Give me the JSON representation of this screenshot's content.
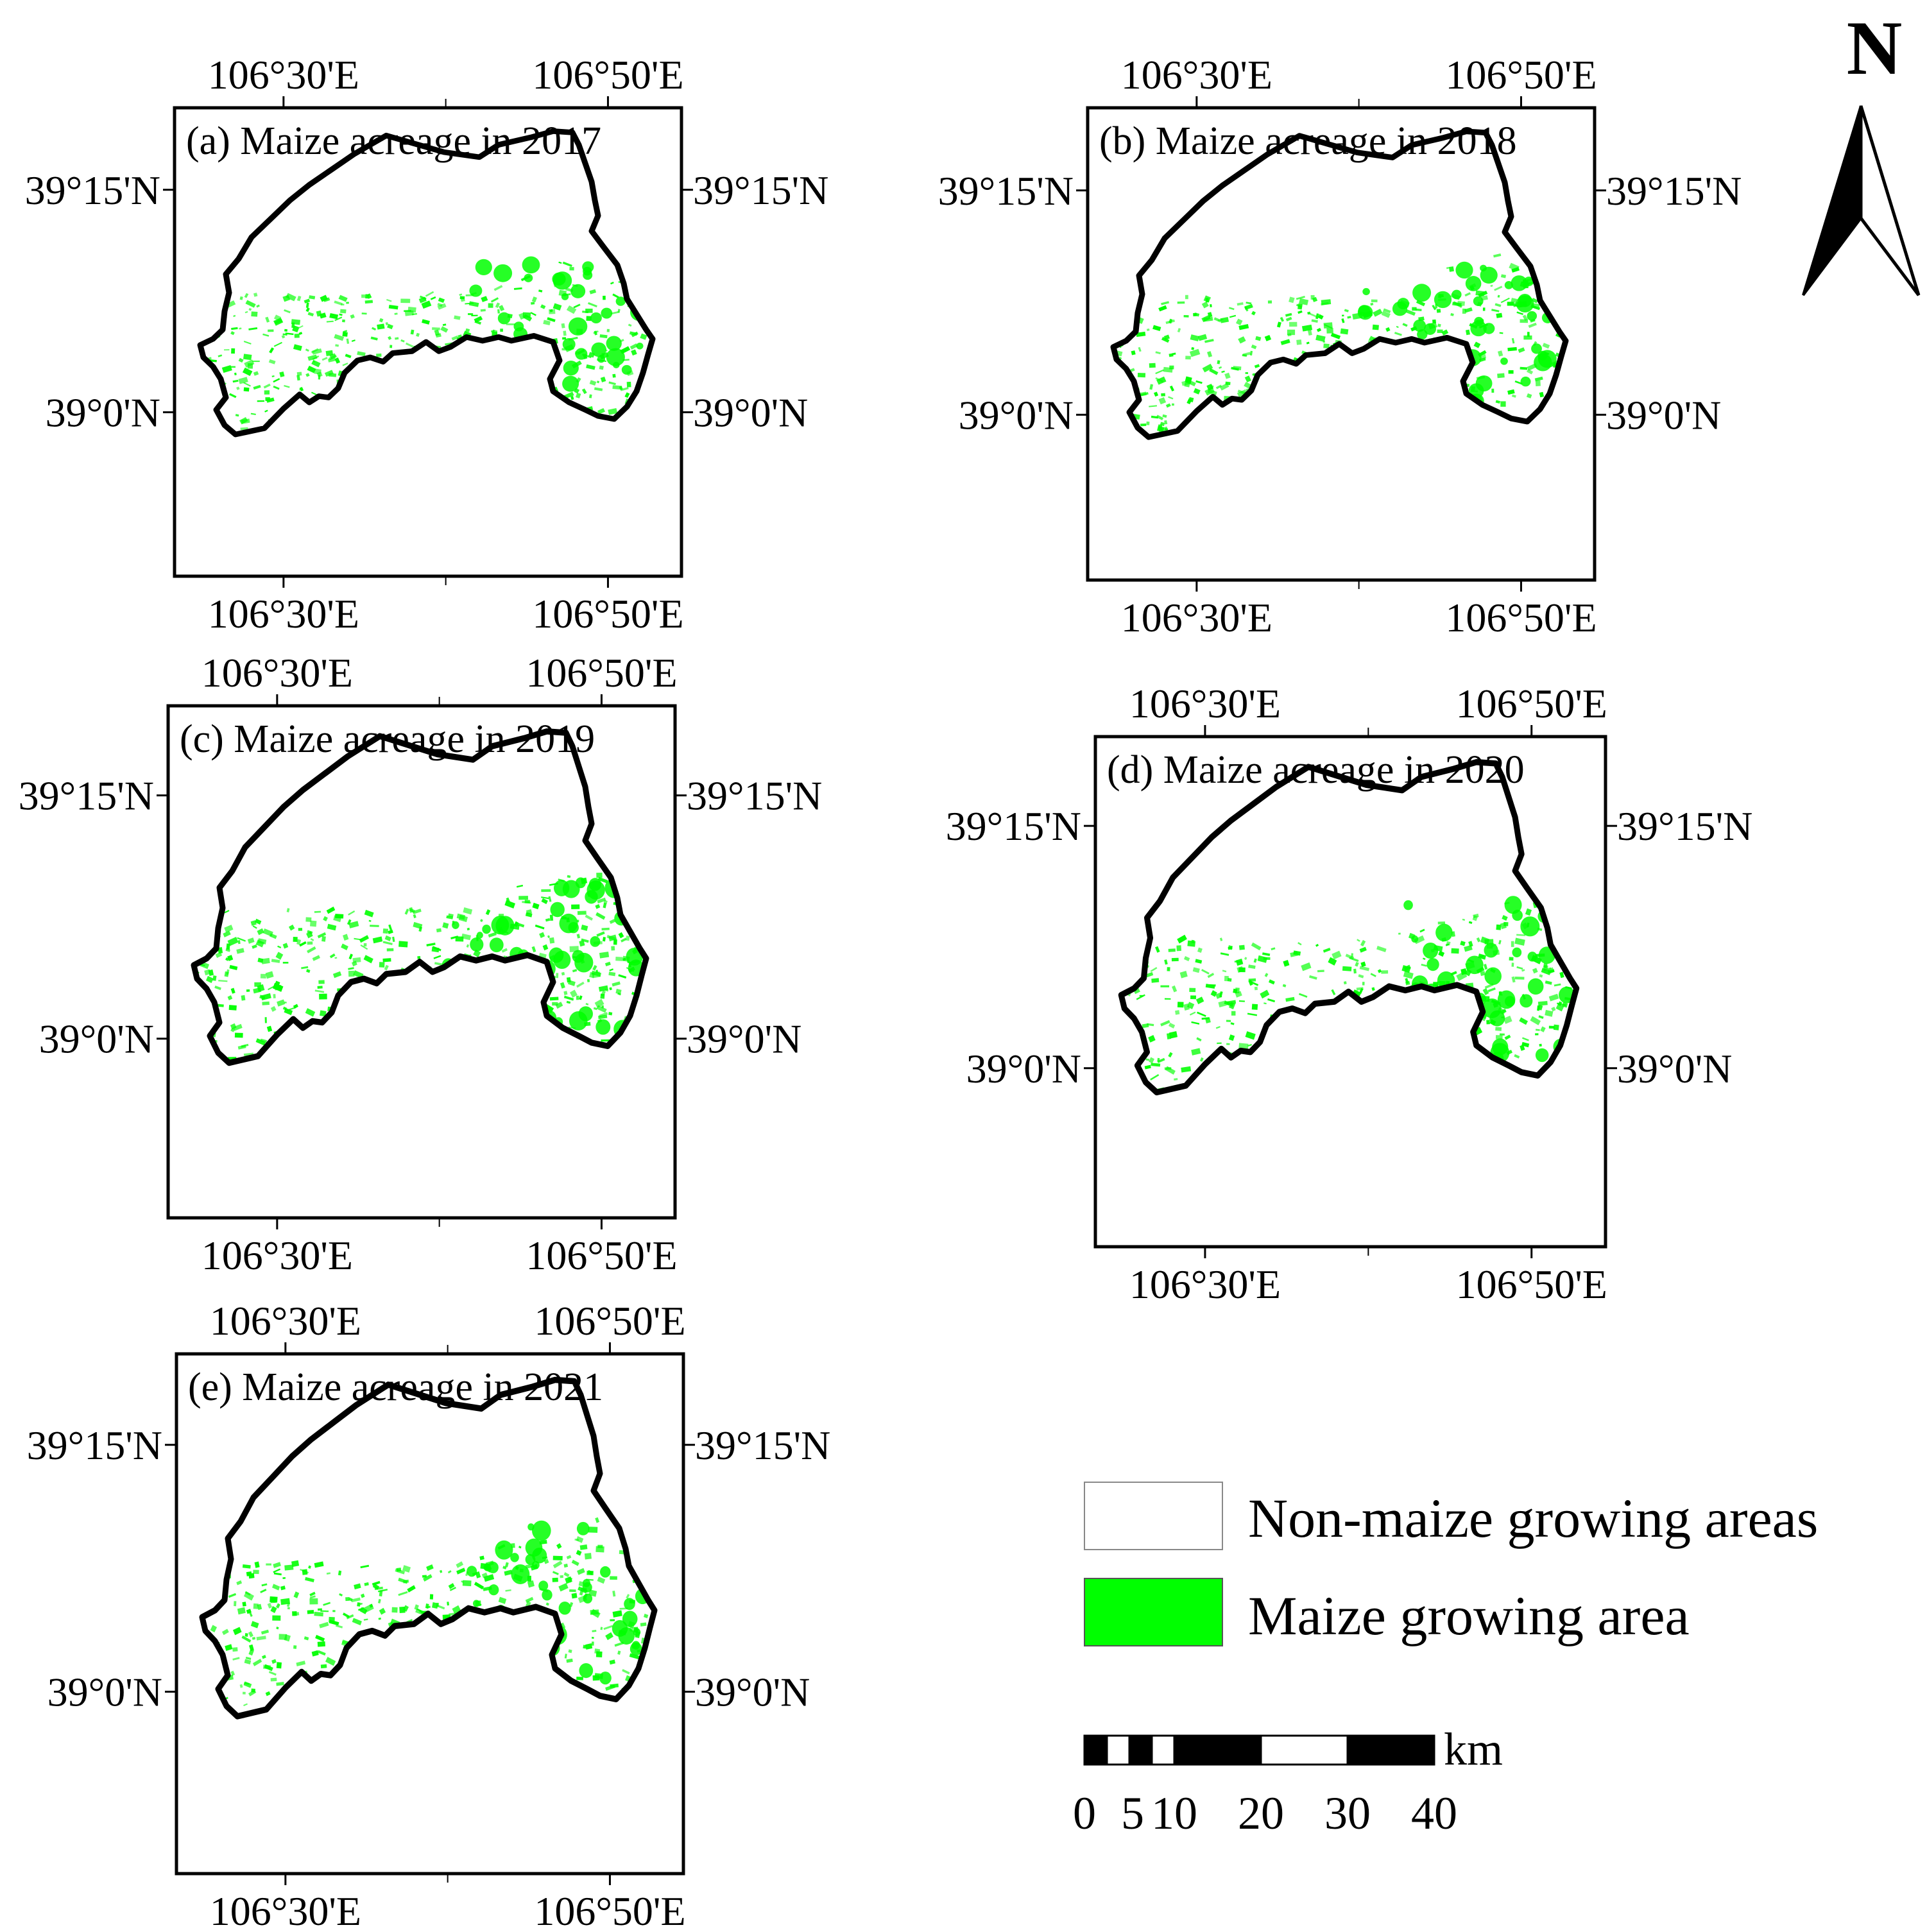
{
  "axis_labels": {
    "lon_left": "106°30'E",
    "lon_right": "106°50'E",
    "lat_top": "39°15'N",
    "lat_bottom": "39°0'N"
  },
  "panels": [
    {
      "id": "a",
      "title": "(a)  Maize acreage in 2017"
    },
    {
      "id": "b",
      "title": "(b)  Maize acreage in 2018"
    },
    {
      "id": "c",
      "title": "(c)  Maize acreage in 2019"
    },
    {
      "id": "d",
      "title": "(d)  Maize acreage in 2020"
    },
    {
      "id": "e",
      "title": "(e)  Maize acreage in 2021"
    }
  ],
  "north_arrow": {
    "label": "N"
  },
  "legend": {
    "items": [
      {
        "label": "Non-maize growing areas",
        "color": "#ffffff"
      },
      {
        "label": "Maize growing area",
        "color": "#00ff00"
      }
    ]
  },
  "scale_bar": {
    "unit": "km",
    "ticks": [
      "0",
      "5",
      "10",
      "20",
      "30",
      "40"
    ]
  },
  "colors": {
    "maize": "#00ff00",
    "boundary": "#000000"
  }
}
